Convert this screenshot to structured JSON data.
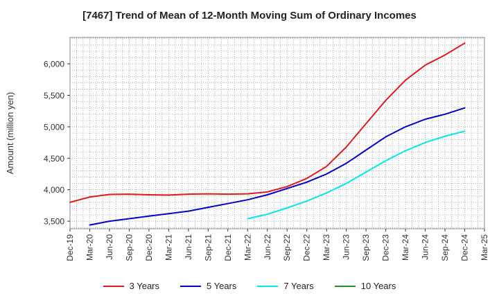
{
  "chart_data": {
    "type": "line",
    "title": "[7467]  Trend of Mean of 12-Month Moving Sum of Ordinary Incomes",
    "xlabel": "",
    "ylabel": "Amount (million yen)",
    "categories": [
      "Dec-19",
      "Mar-20",
      "Jun-20",
      "Sep-20",
      "Dec-20",
      "Mar-21",
      "Jun-21",
      "Sep-21",
      "Dec-21",
      "Mar-22",
      "Jun-22",
      "Sep-22",
      "Dec-22",
      "Mar-23",
      "Jun-23",
      "Sep-23",
      "Dec-23",
      "Mar-24",
      "Jun-24",
      "Sep-24",
      "Dec-24",
      "Mar-25"
    ],
    "y_ticks": [
      3500,
      4000,
      4500,
      5000,
      5500,
      6000
    ],
    "y_tick_labels": [
      "3,500",
      "4,000",
      "4,500",
      "5,000",
      "5,500",
      "6,000"
    ],
    "ylim": [
      3380,
      6420
    ],
    "grid": true,
    "legend_position": "bottom",
    "series": [
      {
        "name": "3 Years",
        "color": "#e31a1c",
        "values": [
          3800,
          3885,
          3925,
          3930,
          3920,
          3915,
          3930,
          3935,
          3930,
          3935,
          3965,
          4050,
          4180,
          4370,
          4680,
          5050,
          5420,
          5740,
          5980,
          6140,
          6330,
          null
        ]
      },
      {
        "name": "5 Years",
        "color": "#0000cc",
        "values": [
          null,
          3440,
          3500,
          3540,
          3580,
          3620,
          3660,
          3720,
          3780,
          3840,
          3920,
          4020,
          4120,
          4250,
          4420,
          4630,
          4840,
          5000,
          5120,
          5200,
          5300,
          null
        ]
      },
      {
        "name": "7 Years",
        "color": "#00e5ee",
        "values": [
          null,
          null,
          null,
          null,
          null,
          null,
          null,
          null,
          null,
          3540,
          3610,
          3710,
          3820,
          3950,
          4100,
          4280,
          4460,
          4620,
          4750,
          4850,
          4930,
          null
        ]
      },
      {
        "name": "10 Years",
        "color": "#228b22",
        "values": [
          null,
          null,
          null,
          null,
          null,
          null,
          null,
          null,
          null,
          null,
          null,
          null,
          null,
          null,
          null,
          null,
          null,
          null,
          null,
          null,
          null,
          null
        ]
      }
    ]
  }
}
